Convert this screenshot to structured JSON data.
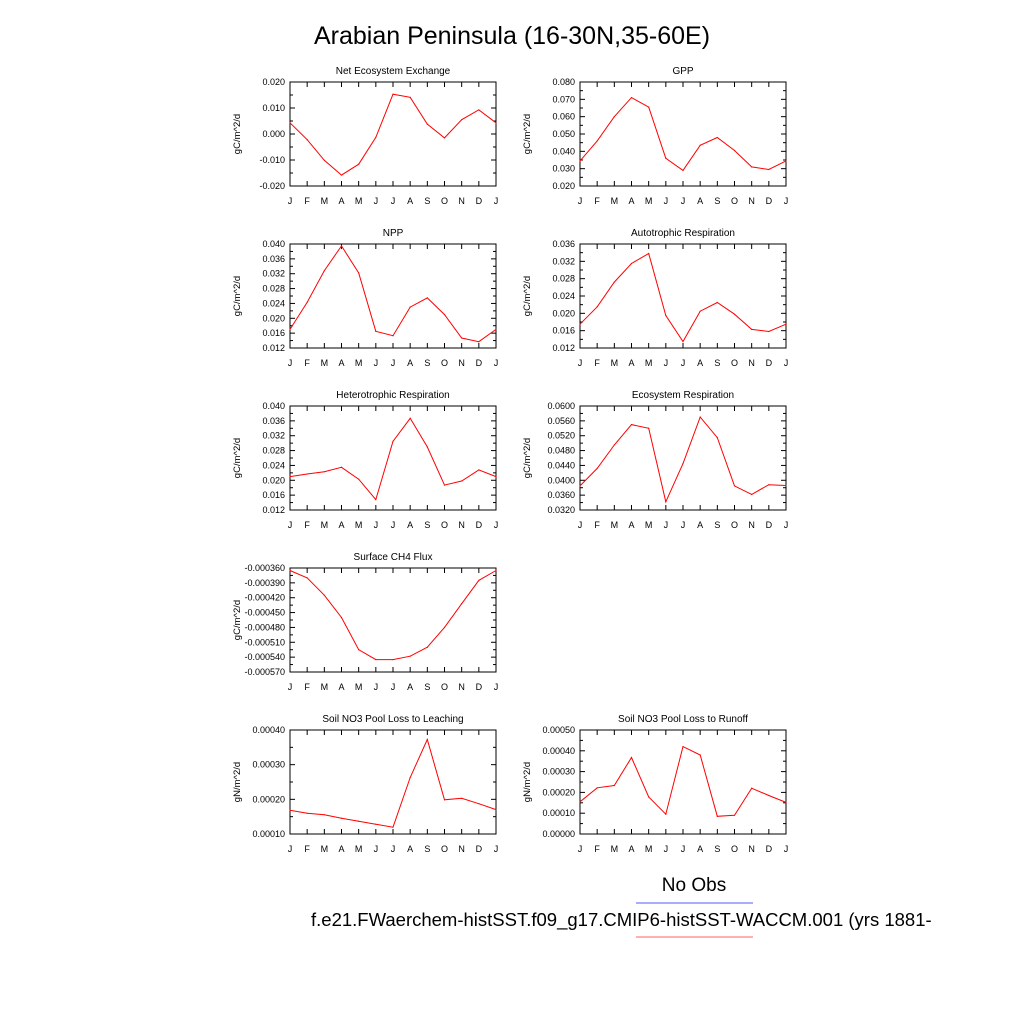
{
  "title": "Arabian Peninsula (16-30N,35-60E)",
  "months": [
    "J",
    "F",
    "M",
    "A",
    "M",
    "J",
    "J",
    "A",
    "S",
    "O",
    "N",
    "D",
    "J"
  ],
  "legend": {
    "obs_label": "No Obs",
    "obs_color": "#7b7bff",
    "case_label": "f.e21.FWaerchem-histSST.f09_g17.CMIP6-histSST-WACCM.001 (yrs 1881-",
    "case_color": "#ff8080"
  },
  "line_color": "#ff0000",
  "chart_data": [
    {
      "type": "line",
      "title": "Net Ecosystem Exchange",
      "ylabel": "gC/m^2/d",
      "ylim": [
        -0.02,
        0.02
      ],
      "yticks": [
        "0.020",
        "0.010",
        "0.000",
        "-0.010",
        "-0.020"
      ],
      "values": [
        0.0043,
        -0.0022,
        -0.0101,
        -0.0158,
        -0.0116,
        -0.0013,
        0.0153,
        0.0141,
        0.0038,
        -0.0015,
        0.0055,
        0.0093,
        0.0043
      ]
    },
    {
      "type": "line",
      "title": "GPP",
      "ylabel": "gC/m^2/d",
      "ylim": [
        0.02,
        0.08
      ],
      "yticks": [
        "0.080",
        "0.070",
        "0.060",
        "0.050",
        "0.040",
        "0.030",
        "0.020"
      ],
      "values": [
        0.0345,
        0.046,
        0.06,
        0.071,
        0.0655,
        0.036,
        0.029,
        0.0435,
        0.048,
        0.0405,
        0.031,
        0.0295,
        0.0345
      ]
    },
    {
      "type": "line",
      "title": "NPP",
      "ylabel": "gC/m^2/d",
      "ylim": [
        0.012,
        0.04
      ],
      "yticks": [
        "0.040",
        "0.036",
        "0.032",
        "0.028",
        "0.024",
        "0.020",
        "0.016",
        "0.012"
      ],
      "values": [
        0.017,
        0.0243,
        0.0328,
        0.0395,
        0.0322,
        0.0165,
        0.0153,
        0.023,
        0.0255,
        0.021,
        0.0147,
        0.0137,
        0.017
      ]
    },
    {
      "type": "line",
      "title": "Autotrophic Respiration",
      "ylabel": "gC/m^2/d",
      "ylim": [
        0.012,
        0.036
      ],
      "yticks": [
        "0.036",
        "0.032",
        "0.028",
        "0.024",
        "0.020",
        "0.016",
        "0.012"
      ],
      "values": [
        0.0175,
        0.0215,
        0.0272,
        0.0315,
        0.0338,
        0.0195,
        0.0135,
        0.0205,
        0.0225,
        0.0198,
        0.0163,
        0.0158,
        0.0175
      ]
    },
    {
      "type": "line",
      "title": "Heterotrophic Respiration",
      "ylabel": "gC/m^2/d",
      "ylim": [
        0.012,
        0.04
      ],
      "yticks": [
        "0.040",
        "0.036",
        "0.032",
        "0.028",
        "0.024",
        "0.020",
        "0.016",
        "0.012"
      ],
      "values": [
        0.021,
        0.0217,
        0.0223,
        0.0235,
        0.0203,
        0.0148,
        0.0305,
        0.0367,
        0.029,
        0.0187,
        0.0198,
        0.0228,
        0.021
      ]
    },
    {
      "type": "line",
      "title": "Ecosystem Respiration",
      "ylabel": "gC/m^2/d",
      "ylim": [
        0.032,
        0.06
      ],
      "yticks": [
        "0.0600",
        "0.0560",
        "0.0520",
        "0.0480",
        "0.0440",
        "0.0400",
        "0.0360",
        "0.0320"
      ],
      "values": [
        0.0385,
        0.0432,
        0.0495,
        0.055,
        0.054,
        0.0342,
        0.0445,
        0.057,
        0.0515,
        0.0385,
        0.0362,
        0.0388,
        0.0386
      ]
    },
    {
      "type": "line",
      "title": "Surface CH4 Flux",
      "ylabel": "gC/m^2/d",
      "ylim": [
        -0.00057,
        -0.00036
      ],
      "yticks": [
        "-0.000360",
        "-0.000390",
        "-0.000420",
        "-0.000450",
        "-0.000480",
        "-0.000510",
        "-0.000540",
        "-0.000570"
      ],
      "values": [
        -0.000365,
        -0.00038,
        -0.000415,
        -0.00046,
        -0.000525,
        -0.000545,
        -0.000545,
        -0.000538,
        -0.00052,
        -0.00048,
        -0.000432,
        -0.000385,
        -0.000365
      ]
    },
    {
      "type": "line",
      "title": "Soil NO3 Pool Loss to Leaching",
      "ylabel": "gN/m^2/d",
      "ylim": [
        5e-05,
        0.0004
      ],
      "yticks": [
        "0.00040",
        "0.00030",
        "0.00020",
        "0.00010"
      ],
      "values": [
        0.00013,
        0.00012,
        0.000115,
        0.000103,
        9.3e-05,
        8.3e-05,
        7.3e-05,
        0.00024,
        0.000368,
        0.000165,
        0.00017,
        0.000152,
        0.000132
      ]
    },
    {
      "type": "line",
      "title": "Soil NO3 Pool Loss to Runoff",
      "ylabel": "gN/m^2/d",
      "ylim": [
        0.0,
        0.0005
      ],
      "yticks": [
        "0.00050",
        "0.00040",
        "0.00030",
        "0.00020",
        "0.00010",
        "0.00000"
      ],
      "values": [
        0.000155,
        0.000222,
        0.000233,
        0.000368,
        0.000178,
        9.5e-05,
        0.00042,
        0.00038,
        8.5e-05,
        9e-05,
        0.00022,
        0.000185,
        0.000152
      ]
    }
  ]
}
